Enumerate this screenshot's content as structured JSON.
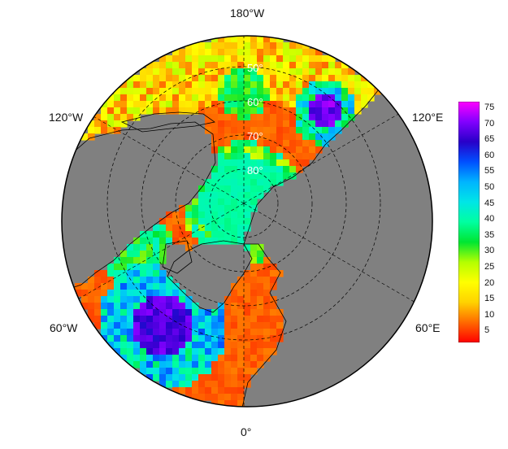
{
  "map": {
    "projection": "north-polar-stereographic",
    "lon_labels": {
      "top": "180°W",
      "bottom": "0°",
      "upper_left": "120°W",
      "upper_right": "120°E",
      "lower_left": "60°W",
      "lower_right": "60°E"
    },
    "lat_labels": [
      "50°",
      "60°",
      "70°",
      "80°"
    ],
    "land_color": "#808080",
    "coast_color": "#000000"
  },
  "colorbar": {
    "ticks": [
      "75",
      "70",
      "65",
      "60",
      "55",
      "50",
      "45",
      "40",
      "35",
      "30",
      "25",
      "20",
      "15",
      "10",
      "5"
    ],
    "min": 0,
    "max": 78,
    "colors": [
      "#ff0000",
      "#ff6a00",
      "#ffd200",
      "#ffff00",
      "#b4ff00",
      "#00e632",
      "#00ffa0",
      "#00e6e6",
      "#00b4ff",
      "#0050ff",
      "#2800c8",
      "#8200ff",
      "#ff00ff"
    ]
  }
}
